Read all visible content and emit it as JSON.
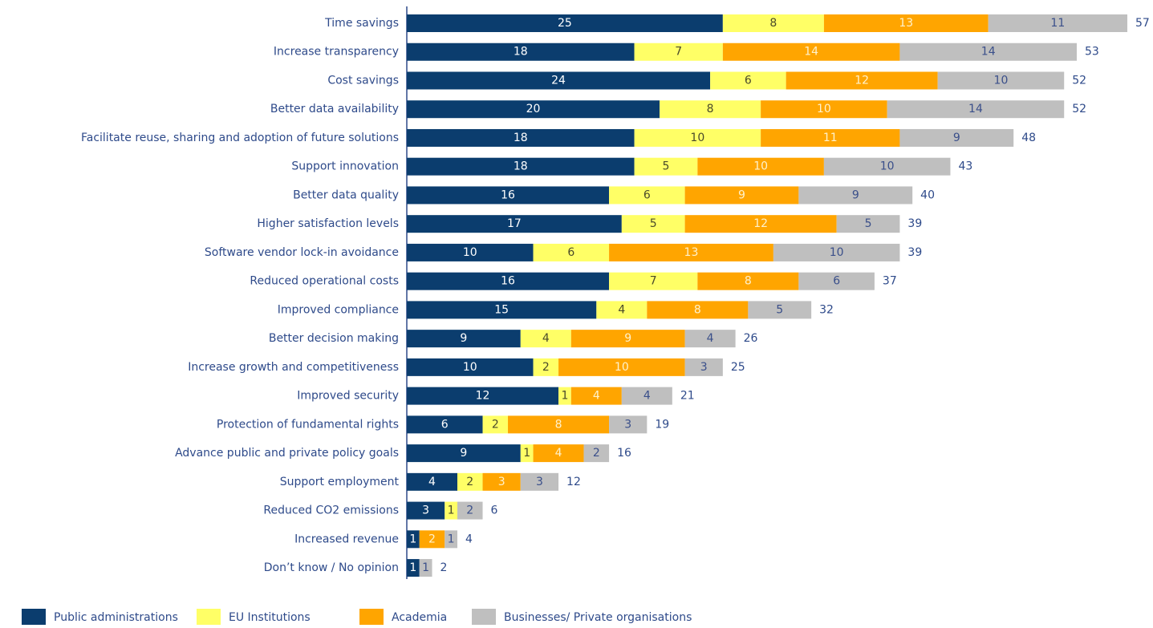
{
  "chart_data": {
    "type": "stacked-bar-horizontal",
    "categories": [
      "Time savings",
      "Increase transparency",
      "Cost savings",
      "Better data availability",
      "Facilitate reuse, sharing and adoption of future solutions",
      "Support innovation",
      "Better data quality",
      "Higher satisfaction levels",
      "Software vendor lock-in avoidance",
      "Reduced operational costs",
      "Improved compliance",
      "Better decision making",
      "Increase growth and competitiveness",
      "Improved security",
      "Protection of fundamental rights",
      "Advance public and private policy goals",
      "Support employment",
      "Reduced CO2 emissions",
      "Increased revenue",
      "Don’t know / No opinion"
    ],
    "series": [
      {
        "name": "Public administrations",
        "color": "#0b3d6e",
        "label_color": "#ffffff",
        "values": [
          25,
          18,
          24,
          20,
          18,
          18,
          16,
          17,
          10,
          16,
          15,
          9,
          10,
          12,
          6,
          9,
          4,
          3,
          1,
          1
        ]
      },
      {
        "name": "EU Institutions",
        "color": "#ffff66",
        "label_color": "#4a4a2a",
        "values": [
          8,
          7,
          6,
          8,
          10,
          5,
          6,
          5,
          6,
          7,
          4,
          4,
          2,
          1,
          2,
          1,
          2,
          1,
          0,
          0
        ]
      },
      {
        "name": "Academia",
        "color": "#ffa500",
        "label_color": "#fff2cc",
        "values": [
          13,
          14,
          12,
          10,
          11,
          10,
          9,
          12,
          13,
          8,
          8,
          9,
          10,
          4,
          8,
          4,
          3,
          0,
          2,
          0
        ]
      },
      {
        "name": "Businesses/ Private organisations",
        "color": "#bfbfbf",
        "label_color": "#3a4f8a",
        "values": [
          11,
          14,
          10,
          14,
          9,
          10,
          9,
          5,
          10,
          6,
          5,
          4,
          3,
          4,
          3,
          2,
          3,
          2,
          1,
          1
        ]
      }
    ],
    "totals": [
      57,
      53,
      52,
      52,
      48,
      43,
      40,
      39,
      39,
      37,
      32,
      26,
      25,
      21,
      19,
      16,
      12,
      6,
      4,
      2
    ],
    "xlim": [
      0,
      57
    ]
  }
}
